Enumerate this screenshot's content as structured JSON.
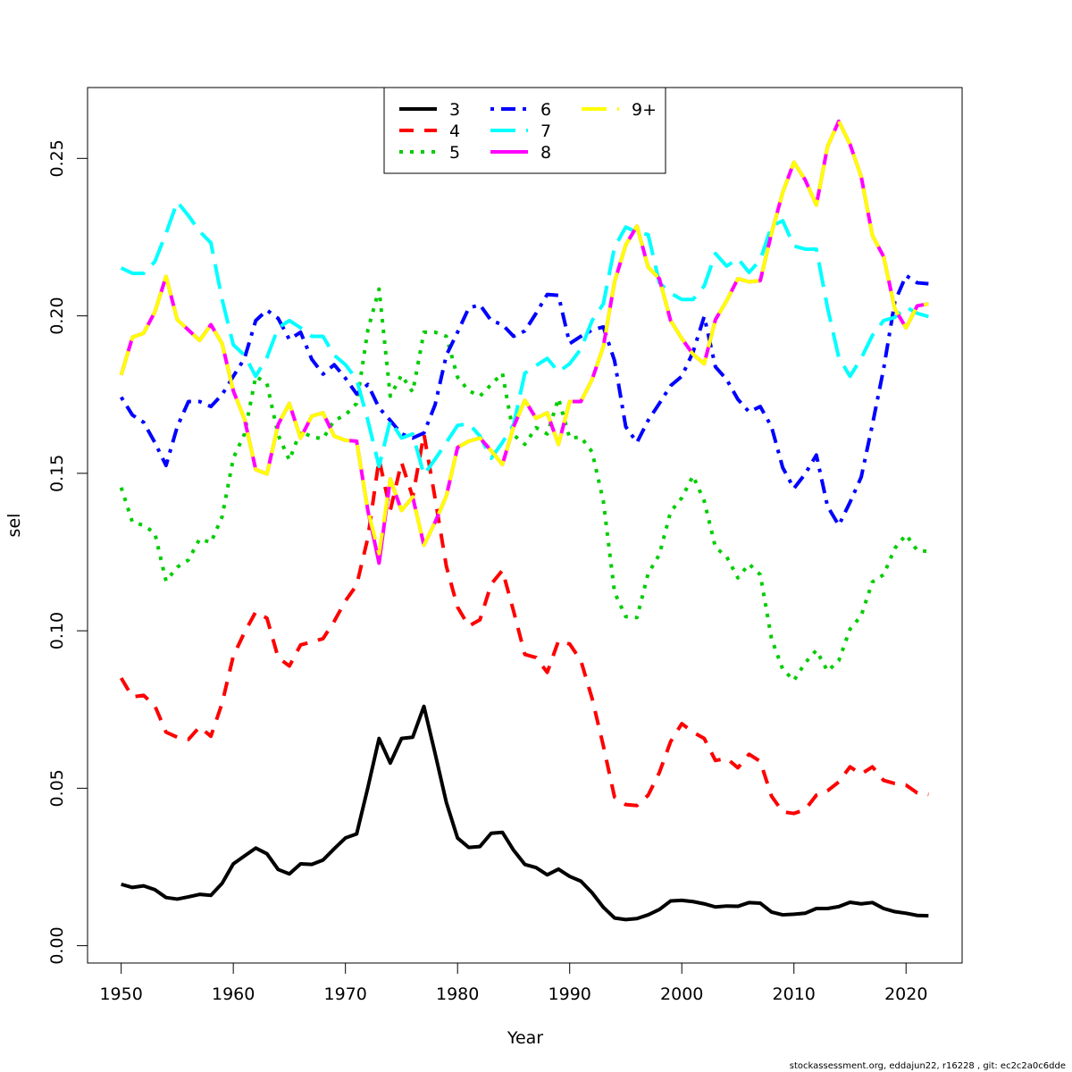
{
  "chart_data": {
    "type": "line",
    "xlabel": "Year",
    "ylabel": "sel",
    "xlim": [
      1947,
      2025
    ],
    "ylim": [
      -0.0055,
      0.2725
    ],
    "xticks": [
      "1950",
      "1960",
      "1970",
      "1980",
      "1990",
      "2000",
      "2010",
      "2020"
    ],
    "yticks": [
      "0.00",
      "0.05",
      "0.10",
      "0.15",
      "0.20",
      "0.25"
    ],
    "legend_position": "top-center",
    "grid": false,
    "x": [
      1950,
      1951,
      1952,
      1953,
      1954,
      1955,
      1956,
      1957,
      1958,
      1959,
      1960,
      1961,
      1962,
      1963,
      1964,
      1965,
      1966,
      1967,
      1968,
      1969,
      1970,
      1971,
      1972,
      1973,
      1974,
      1975,
      1976,
      1977,
      1978,
      1979,
      1980,
      1981,
      1982,
      1983,
      1984,
      1985,
      1986,
      1987,
      1988,
      1989,
      1990,
      1991,
      1992,
      1993,
      1994,
      1995,
      1996,
      1997,
      1998,
      1999,
      2000,
      2001,
      2002,
      2003,
      2004,
      2005,
      2006,
      2007,
      2008,
      2009,
      2010,
      2011,
      2012,
      2013,
      2014,
      2015,
      2016,
      2017,
      2018,
      2019,
      2020,
      2021,
      2022
    ],
    "series": [
      {
        "name": "3",
        "color": "#000000",
        "dash": "solid",
        "values": [
          0.0195,
          0.0185,
          0.019,
          0.0178,
          0.0153,
          0.0148,
          0.0155,
          0.0163,
          0.016,
          0.0198,
          0.026,
          0.0285,
          0.031,
          0.0292,
          0.0242,
          0.0228,
          0.026,
          0.0258,
          0.0272,
          0.0308,
          0.0342,
          0.0355,
          0.0502,
          0.0658,
          0.058,
          0.0658,
          0.0662,
          0.076,
          0.061,
          0.0455,
          0.0342,
          0.0312,
          0.0315,
          0.0357,
          0.036,
          0.0303,
          0.0258,
          0.0248,
          0.0225,
          0.0243,
          0.022,
          0.0205,
          0.0168,
          0.0122,
          0.0088,
          0.0083,
          0.0086,
          0.0098,
          0.0115,
          0.0142,
          0.0144,
          0.014,
          0.0133,
          0.0123,
          0.0126,
          0.0125,
          0.0137,
          0.0135,
          0.0107,
          0.0098,
          0.01,
          0.0103,
          0.0118,
          0.0118,
          0.0124,
          0.0138,
          0.0133,
          0.0137,
          0.0118,
          0.0108,
          0.0103,
          0.0096,
          0.0095
        ]
      },
      {
        "name": "4",
        "color": "#ff0000",
        "dash": "dashed",
        "values": [
          0.085,
          0.079,
          0.0795,
          0.0762,
          0.0678,
          0.0662,
          0.0655,
          0.0695,
          0.0665,
          0.077,
          0.092,
          0.0995,
          0.106,
          0.104,
          0.0915,
          0.0888,
          0.0955,
          0.0965,
          0.0975,
          0.103,
          0.1095,
          0.1145,
          0.1295,
          0.1545,
          0.1382,
          0.1535,
          0.1425,
          0.1625,
          0.142,
          0.1205,
          0.1075,
          0.1015,
          0.1035,
          0.1148,
          0.1192,
          0.1062,
          0.0925,
          0.0915,
          0.0868,
          0.0968,
          0.0958,
          0.0905,
          0.0785,
          0.0635,
          0.0472,
          0.0448,
          0.0445,
          0.0478,
          0.055,
          0.0648,
          0.0705,
          0.0678,
          0.0658,
          0.0588,
          0.0595,
          0.0565,
          0.0608,
          0.0585,
          0.0475,
          0.0425,
          0.042,
          0.0432,
          0.0478,
          0.0492,
          0.052,
          0.0568,
          0.0545,
          0.0568,
          0.0525,
          0.0515,
          0.051,
          0.0485,
          0.048
        ]
      },
      {
        "name": "5",
        "color": "#00cd00",
        "dash": "dotted",
        "values": [
          0.1455,
          0.1345,
          0.1335,
          0.131,
          0.1158,
          0.1202,
          0.1225,
          0.1292,
          0.128,
          0.1362,
          0.1548,
          0.1625,
          0.1808,
          0.1785,
          0.1622,
          0.1542,
          0.1635,
          0.1615,
          0.161,
          0.1668,
          0.1685,
          0.1722,
          0.1955,
          0.2085,
          0.1745,
          0.1812,
          0.1758,
          0.1948,
          0.1948,
          0.1935,
          0.1805,
          0.1762,
          0.1745,
          0.1782,
          0.1818,
          0.1622,
          0.1592,
          0.1645,
          0.1625,
          0.1738,
          0.1612,
          0.1615,
          0.1568,
          0.1412,
          0.1122,
          0.1045,
          0.1042,
          0.1182,
          0.1242,
          0.1378,
          0.1422,
          0.1492,
          0.1412,
          0.1265,
          0.1235,
          0.1168,
          0.1212,
          0.1178,
          0.0975,
          0.0878,
          0.0842,
          0.0898,
          0.0938,
          0.0872,
          0.0905,
          0.1005,
          0.1048,
          0.1155,
          0.1178,
          0.1262,
          0.1305,
          0.1255,
          0.1252
        ]
      },
      {
        "name": "6",
        "color": "#0000ff",
        "dash": "dashdot",
        "values": [
          0.1742,
          0.1685,
          0.1662,
          0.1598,
          0.1525,
          0.1648,
          0.1728,
          0.1728,
          0.1712,
          0.175,
          0.1808,
          0.1865,
          0.1985,
          0.2018,
          0.1992,
          0.1925,
          0.1948,
          0.1862,
          0.1815,
          0.1845,
          0.1802,
          0.1752,
          0.1782,
          0.1708,
          0.1668,
          0.1625,
          0.1612,
          0.1628,
          0.1718,
          0.1875,
          0.1948,
          0.2025,
          0.2035,
          0.1985,
          0.1972,
          0.1935,
          0.1952,
          0.2008,
          0.2068,
          0.2065,
          0.1912,
          0.1935,
          0.1955,
          0.1965,
          0.1858,
          0.1648,
          0.1598,
          0.1668,
          0.1722,
          0.1778,
          0.1808,
          0.1885,
          0.1998,
          0.1838,
          0.1798,
          0.1735,
          0.1695,
          0.1712,
          0.1648,
          0.1518,
          0.1452,
          0.1498,
          0.1558,
          0.1395,
          0.1335,
          0.1408,
          0.1488,
          0.1655,
          0.1832,
          0.2045,
          0.2128,
          0.2105,
          0.2102
        ]
      },
      {
        "name": "7",
        "color": "#00ffff",
        "dash": "longdash",
        "values": [
          0.2152,
          0.2135,
          0.2135,
          0.2172,
          0.2262,
          0.2362,
          0.2318,
          0.2268,
          0.2232,
          0.2052,
          0.1908,
          0.1875,
          0.1808,
          0.1868,
          0.1962,
          0.1985,
          0.1962,
          0.1935,
          0.1935,
          0.1875,
          0.1845,
          0.1798,
          0.1668,
          0.1522,
          0.1668,
          0.1612,
          0.1625,
          0.1495,
          0.1545,
          0.1598,
          0.1652,
          0.1658,
          0.1618,
          0.1548,
          0.1598,
          0.1655,
          0.1818,
          0.1842,
          0.1865,
          0.1822,
          0.1848,
          0.1895,
          0.1985,
          0.2038,
          0.2218,
          0.2282,
          0.2265,
          0.2258,
          0.2105,
          0.2072,
          0.2052,
          0.2052,
          0.2095,
          0.2198,
          0.2158,
          0.2182,
          0.2138,
          0.2178,
          0.2285,
          0.2302,
          0.2222,
          0.2212,
          0.2212,
          0.2025,
          0.1868,
          0.1808,
          0.1865,
          0.1938,
          0.1985,
          0.1995,
          0.2028,
          0.2008,
          0.1998
        ]
      },
      {
        "name": "8",
        "color": "#ff00ff",
        "dash": "solid",
        "values": [
          0.1812,
          0.1932,
          0.1945,
          0.2012,
          0.2125,
          0.1988,
          0.1955,
          0.1922,
          0.1972,
          0.1912,
          0.1762,
          0.1672,
          0.1512,
          0.1498,
          0.1655,
          0.1722,
          0.1612,
          0.1682,
          0.1692,
          0.1618,
          0.1605,
          0.1602,
          0.1382,
          0.1215,
          0.1482,
          0.1382,
          0.1425,
          0.1272,
          0.1345,
          0.1428,
          0.1582,
          0.1602,
          0.1612,
          0.1572,
          0.1528,
          0.1648,
          0.1732,
          0.1675,
          0.1692,
          0.1592,
          0.1728,
          0.1728,
          0.1798,
          0.1902,
          0.2108,
          0.2225,
          0.2285,
          0.2155,
          0.2118,
          0.1985,
          0.1928,
          0.1878,
          0.1848,
          0.1988,
          0.2048,
          0.2118,
          0.2108,
          0.2112,
          0.2262,
          0.2392,
          0.2488,
          0.2432,
          0.2352,
          0.2538,
          0.2618,
          0.2545,
          0.2442,
          0.2255,
          0.2188,
          0.2022,
          0.1962,
          0.2032,
          0.2038
        ]
      },
      {
        "name": "9+",
        "color": "#ffff00",
        "dash": "longdash",
        "values": [
          0.1812,
          0.1932,
          0.1945,
          0.2012,
          0.2125,
          0.1988,
          0.1955,
          0.1922,
          0.1972,
          0.1912,
          0.1762,
          0.1672,
          0.1512,
          0.1498,
          0.1655,
          0.1722,
          0.1612,
          0.1682,
          0.1692,
          0.1618,
          0.1605,
          0.1602,
          0.1382,
          0.1245,
          0.1482,
          0.1382,
          0.1425,
          0.1272,
          0.1345,
          0.1428,
          0.1582,
          0.1602,
          0.1612,
          0.1572,
          0.1528,
          0.1648,
          0.1732,
          0.1675,
          0.1692,
          0.1592,
          0.1728,
          0.1728,
          0.1798,
          0.1902,
          0.2108,
          0.2225,
          0.2285,
          0.2155,
          0.2118,
          0.1985,
          0.1928,
          0.1878,
          0.1848,
          0.1988,
          0.2048,
          0.2118,
          0.2108,
          0.2112,
          0.2262,
          0.2392,
          0.2488,
          0.2432,
          0.2352,
          0.2538,
          0.2618,
          0.2545,
          0.2442,
          0.2255,
          0.2188,
          0.2022,
          0.1962,
          0.2032,
          0.2038
        ]
      }
    ]
  },
  "footer": "stockassessment.org, eddajun22, r16228 , git: ec2c2a0c6dde"
}
